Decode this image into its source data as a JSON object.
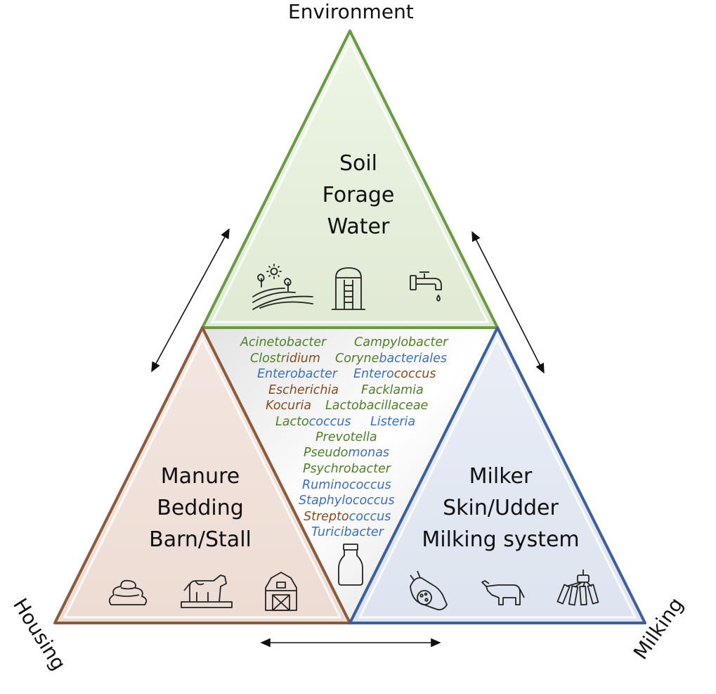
{
  "corners": {
    "environment": "Environment",
    "housing": "Housing",
    "milking": "Milking"
  },
  "triangles": {
    "environment": {
      "lines": [
        "Soil",
        "Forage",
        "Water"
      ],
      "color": "#6a9a46",
      "icons": [
        "farm-field-icon",
        "silo-icon",
        "water-tap-icon"
      ]
    },
    "housing": {
      "lines": [
        "Manure",
        "Bedding",
        "Barn/Stall"
      ],
      "color": "#8a5a3c",
      "icons": [
        "manure-icon",
        "cow-on-bedding-icon",
        "barn-icon"
      ]
    },
    "milking": {
      "lines": [
        "Milker",
        "Skin/Udder",
        "Milking system"
      ],
      "color": "#3d5fa0",
      "icons": [
        "hand-bacteria-icon",
        "cow-icon",
        "milking-cluster-icon"
      ]
    }
  },
  "center": {
    "icon": "milk-bottle-icon"
  },
  "bacteria": [
    {
      "parts": [
        {
          "t": "Acinetobacter",
          "c": "g"
        }
      ]
    },
    {
      "parts": [
        {
          "t": "Campylobacter",
          "c": "g"
        }
      ]
    },
    {
      "parts": [
        {
          "t": "Clostr",
          "c": "g"
        },
        {
          "t": "idium",
          "c": "r"
        }
      ]
    },
    {
      "parts": [
        {
          "t": "Coryne",
          "c": "g"
        },
        {
          "t": "bacteriales",
          "c": "b"
        }
      ]
    },
    {
      "parts": [
        {
          "t": "Enterobacter",
          "c": "b"
        }
      ]
    },
    {
      "parts": [
        {
          "t": "Entero",
          "c": "b"
        },
        {
          "t": "coccus",
          "c": "r"
        }
      ]
    },
    {
      "parts": [
        {
          "t": "Escherichia",
          "c": "r"
        }
      ]
    },
    {
      "parts": [
        {
          "t": "Facklamia",
          "c": "g"
        }
      ]
    },
    {
      "parts": [
        {
          "t": "Kocuria",
          "c": "r"
        }
      ]
    },
    {
      "parts": [
        {
          "t": "Lactobacillaceae",
          "c": "g"
        }
      ]
    },
    {
      "parts": [
        {
          "t": "Lacto",
          "c": "g"
        },
        {
          "t": "coccus",
          "c": "b"
        }
      ]
    },
    {
      "parts": [
        {
          "t": "Listeria",
          "c": "b"
        }
      ]
    },
    {
      "parts": [
        {
          "t": "Prevotella",
          "c": "g"
        }
      ]
    },
    {
      "parts": [
        {
          "t": "Pseudo",
          "c": "g"
        },
        {
          "t": "monas",
          "c": "b"
        }
      ]
    },
    {
      "parts": [
        {
          "t": "Psychrobacter",
          "c": "g"
        }
      ]
    },
    {
      "parts": [
        {
          "t": "Ruminococcus",
          "c": "b"
        }
      ]
    },
    {
      "parts": [
        {
          "t": "Staphylococcus",
          "c": "b"
        }
      ]
    },
    {
      "parts": [
        {
          "t": "Strepto",
          "c": "r"
        },
        {
          "t": "coccus",
          "c": "b"
        }
      ]
    },
    {
      "parts": [
        {
          "t": "Turicibacter",
          "c": "b"
        }
      ]
    }
  ]
}
